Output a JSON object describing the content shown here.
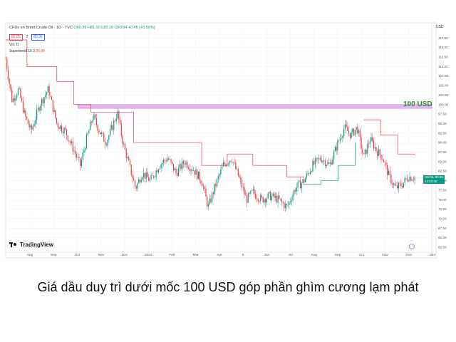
{
  "header": {
    "title": "CFDs on Brent Crude Oil · 1D · TVC",
    "ohlc": "O80.39 H81.10 L80.19 C80.84 +0.45 (+0.56%)",
    "sell_price": "80.85",
    "spread": "7",
    "buy_price": "80.92",
    "vol_label": "Vol, D",
    "supertrend_label": "Supertrend 10 3",
    "supertrend_value": "86.88"
  },
  "brand": {
    "name": "TradingView"
  },
  "annotation": {
    "text": "100 USD"
  },
  "current": {
    "symbol": "UKOIL",
    "price": "80.84",
    "countdown": "12:53:46"
  },
  "currency": "USD",
  "caption": "Giá dầu duy trì dưới mốc 100 USD góp phần ghìm cương lạm phát",
  "colors": {
    "up": "#089981",
    "down": "#f23645",
    "band": "#e2b7ef",
    "st_up": "#089981",
    "st_down": "#f23645"
  },
  "chart_data": {
    "type": "candlestick",
    "title": "CFDs on Brent Crude Oil · 1D · TVC",
    "x_ticks": [
      "Aug",
      "Sep",
      "Oct",
      "Nov",
      "Dec",
      "2023",
      "Feb",
      "Mar",
      "Apr",
      "5",
      "Jun",
      "Jul",
      "Aug",
      "Sep",
      "Oct",
      "Nov",
      "Dec",
      "202"
    ],
    "y_ticks": [
      117.5,
      115,
      112.5,
      110,
      107.5,
      105,
      102.5,
      100,
      97.5,
      95,
      92.5,
      90,
      87.5,
      85,
      82.5,
      80,
      77.5,
      75,
      72.5,
      70,
      67.5,
      65,
      62.5
    ],
    "ylim": [
      61,
      120
    ],
    "close_path": [
      {
        "t": 0.0,
        "v": 112
      },
      {
        "t": 0.015,
        "v": 101
      },
      {
        "t": 0.03,
        "v": 104
      },
      {
        "t": 0.045,
        "v": 97
      },
      {
        "t": 0.06,
        "v": 93
      },
      {
        "t": 0.08,
        "v": 100
      },
      {
        "t": 0.1,
        "v": 104
      },
      {
        "t": 0.12,
        "v": 95
      },
      {
        "t": 0.14,
        "v": 93
      },
      {
        "t": 0.16,
        "v": 88
      },
      {
        "t": 0.175,
        "v": 84
      },
      {
        "t": 0.19,
        "v": 91
      },
      {
        "t": 0.205,
        "v": 97
      },
      {
        "t": 0.22,
        "v": 93
      },
      {
        "t": 0.235,
        "v": 90
      },
      {
        "t": 0.25,
        "v": 94
      },
      {
        "t": 0.262,
        "v": 98
      },
      {
        "t": 0.275,
        "v": 90
      },
      {
        "t": 0.29,
        "v": 84
      },
      {
        "t": 0.305,
        "v": 78
      },
      {
        "t": 0.32,
        "v": 82
      },
      {
        "t": 0.34,
        "v": 80
      },
      {
        "t": 0.36,
        "v": 84
      },
      {
        "t": 0.38,
        "v": 86
      },
      {
        "t": 0.4,
        "v": 82
      },
      {
        "t": 0.42,
        "v": 85
      },
      {
        "t": 0.44,
        "v": 83
      },
      {
        "t": 0.46,
        "v": 80
      },
      {
        "t": 0.475,
        "v": 73
      },
      {
        "t": 0.49,
        "v": 78
      },
      {
        "t": 0.51,
        "v": 84
      },
      {
        "t": 0.53,
        "v": 86
      },
      {
        "t": 0.55,
        "v": 80
      },
      {
        "t": 0.565,
        "v": 75
      },
      {
        "t": 0.58,
        "v": 77
      },
      {
        "t": 0.6,
        "v": 75
      },
      {
        "t": 0.62,
        "v": 76
      },
      {
        "t": 0.64,
        "v": 75
      },
      {
        "t": 0.66,
        "v": 73
      },
      {
        "t": 0.68,
        "v": 78
      },
      {
        "t": 0.7,
        "v": 80
      },
      {
        "t": 0.72,
        "v": 84
      },
      {
        "t": 0.74,
        "v": 86
      },
      {
        "t": 0.76,
        "v": 84
      },
      {
        "t": 0.78,
        "v": 90
      },
      {
        "t": 0.795,
        "v": 94
      },
      {
        "t": 0.81,
        "v": 92
      },
      {
        "t": 0.825,
        "v": 94
      },
      {
        "t": 0.84,
        "v": 86
      },
      {
        "t": 0.855,
        "v": 91
      },
      {
        "t": 0.87,
        "v": 88
      },
      {
        "t": 0.885,
        "v": 86
      },
      {
        "t": 0.9,
        "v": 81
      },
      {
        "t": 0.915,
        "v": 78
      },
      {
        "t": 0.93,
        "v": 79
      },
      {
        "t": 0.945,
        "v": 81
      },
      {
        "t": 0.96,
        "v": 80.84
      }
    ],
    "supertrend_down": [
      {
        "t": 0.0,
        "v": 117
      },
      {
        "t": 0.05,
        "v": 110
      },
      {
        "t": 0.12,
        "v": 106
      },
      {
        "t": 0.16,
        "v": 100
      },
      {
        "t": 0.2,
        "v": 98
      },
      {
        "t": 0.3,
        "v": 90
      },
      {
        "t": 0.38,
        "v": 90
      },
      {
        "t": 0.46,
        "v": 84
      },
      {
        "t": 0.52,
        "v": 87
      },
      {
        "t": 0.58,
        "v": 84
      },
      {
        "t": 0.66,
        "v": 81
      },
      {
        "t": 0.7,
        "v": 81
      }
    ],
    "supertrend_up": [
      {
        "t": 0.7,
        "v": 79
      },
      {
        "t": 0.74,
        "v": 80
      },
      {
        "t": 0.78,
        "v": 84
      },
      {
        "t": 0.82,
        "v": 90
      }
    ],
    "supertrend_down2": [
      {
        "t": 0.84,
        "v": 96
      },
      {
        "t": 0.88,
        "v": 92
      },
      {
        "t": 0.92,
        "v": 87
      },
      {
        "t": 0.96,
        "v": 86.88
      }
    ],
    "band": {
      "low": 99,
      "high": 100,
      "from": 0.17,
      "to": 1.0,
      "label": "100 USD"
    }
  }
}
